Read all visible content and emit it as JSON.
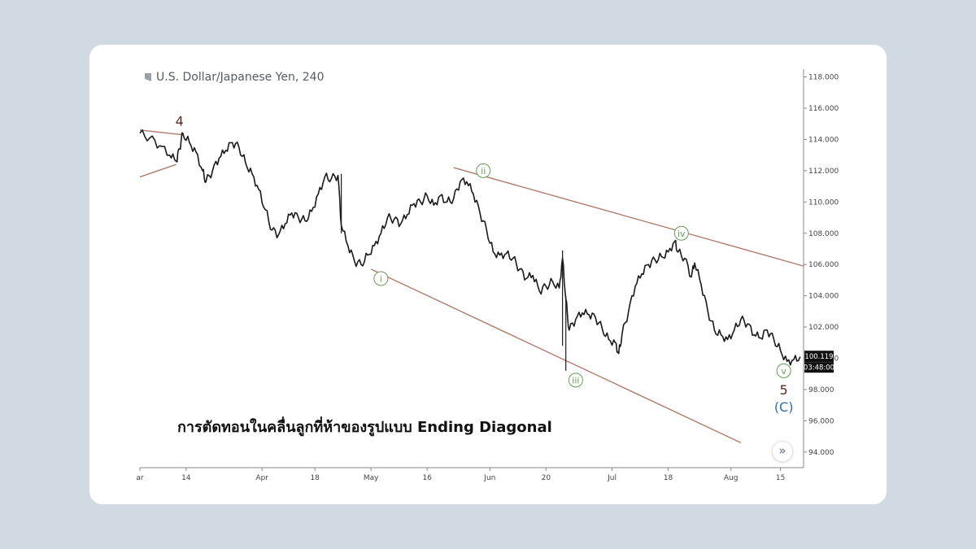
{
  "chart_data": {
    "type": "line",
    "title": "U.S. Dollar/Japanese Yen, 240",
    "caption": "การตัดทอนในคลื่นลูกที่ห้าของรูปแบบ Ending Diagonal",
    "ylim": [
      93,
      118.5
    ],
    "y_ticks": [
      "118.000",
      "116.000",
      "114.000",
      "112.000",
      "110.000",
      "108.000",
      "106.000",
      "104.000",
      "102.000",
      "100.000",
      "98.000",
      "96.000",
      "94.000"
    ],
    "y_tick_values": [
      118,
      116,
      114,
      112,
      110,
      108,
      106,
      104,
      102,
      100,
      98,
      96,
      94
    ],
    "x_ticks": [
      "ar",
      "14",
      "Apr",
      "18",
      "May",
      "16",
      "Jun",
      "20",
      "Jul",
      "18",
      "Aug",
      "15"
    ],
    "x_tick_positions": [
      0,
      14,
      37,
      53,
      70,
      87,
      106,
      123,
      143,
      160,
      179,
      194
    ],
    "xlim": [
      0,
      201
    ],
    "current_price": "100.119",
    "countdown": "03:48:00",
    "price_path": [
      [
        0,
        114.4
      ],
      [
        3,
        114.1
      ],
      [
        6,
        113.6
      ],
      [
        9,
        113.0
      ],
      [
        11,
        112.6
      ],
      [
        12,
        113.4
      ],
      [
        13,
        114.4
      ],
      [
        15,
        113.8
      ],
      [
        17,
        113.2
      ],
      [
        19,
        112.0
      ],
      [
        20,
        111.3
      ],
      [
        22,
        112.0
      ],
      [
        24,
        112.8
      ],
      [
        26,
        113.3
      ],
      [
        28,
        113.8
      ],
      [
        30,
        113.5
      ],
      [
        32,
        112.5
      ],
      [
        34,
        111.8
      ],
      [
        36,
        110.8
      ],
      [
        38,
        109.5
      ],
      [
        40,
        108.2
      ],
      [
        42,
        107.9
      ],
      [
        44,
        108.6
      ],
      [
        46,
        109.3
      ],
      [
        48,
        109.0
      ],
      [
        50,
        108.8
      ],
      [
        52,
        109.4
      ],
      [
        54,
        110.5
      ],
      [
        56,
        111.6
      ],
      [
        58,
        111.5
      ],
      [
        60,
        111.7
      ],
      [
        61,
        108.5
      ],
      [
        63,
        107.2
      ],
      [
        65,
        106.2
      ],
      [
        67,
        106.0
      ],
      [
        69,
        106.6
      ],
      [
        71,
        107.2
      ],
      [
        73,
        108.0
      ],
      [
        75,
        109.0
      ],
      [
        77,
        108.9
      ],
      [
        79,
        108.6
      ],
      [
        81,
        109.2
      ],
      [
        83,
        109.9
      ],
      [
        85,
        110.0
      ],
      [
        87,
        110.4
      ],
      [
        89,
        109.8
      ],
      [
        91,
        110.4
      ],
      [
        93,
        110.0
      ],
      [
        95,
        110.2
      ],
      [
        97,
        111.3
      ],
      [
        99,
        111.3
      ],
      [
        101,
        110.5
      ],
      [
        103,
        109.3
      ],
      [
        105,
        108.2
      ],
      [
        107,
        106.8
      ],
      [
        109,
        106.6
      ],
      [
        111,
        106.7
      ],
      [
        113,
        106.4
      ],
      [
        115,
        105.7
      ],
      [
        117,
        105.1
      ],
      [
        119,
        105.3
      ],
      [
        121,
        104.3
      ],
      [
        123,
        104.6
      ],
      [
        125,
        104.9
      ],
      [
        127,
        104.5
      ],
      [
        128,
        106.4
      ],
      [
        129,
        103.8
      ],
      [
        130,
        101.8
      ],
      [
        132,
        102.5
      ],
      [
        134,
        102.9
      ],
      [
        136,
        102.8
      ],
      [
        138,
        102.6
      ],
      [
        140,
        101.9
      ],
      [
        142,
        101.2
      ],
      [
        144,
        101.0
      ],
      [
        145,
        100.3
      ],
      [
        146,
        101.5
      ],
      [
        148,
        103.0
      ],
      [
        150,
        104.6
      ],
      [
        152,
        105.4
      ],
      [
        154,
        106.0
      ],
      [
        156,
        106.3
      ],
      [
        158,
        106.5
      ],
      [
        160,
        106.8
      ],
      [
        162,
        107.5
      ],
      [
        163,
        106.8
      ],
      [
        165,
        106.4
      ],
      [
        167,
        105.2
      ],
      [
        168,
        106.1
      ],
      [
        170,
        104.7
      ],
      [
        172,
        103.0
      ],
      [
        174,
        101.8
      ],
      [
        176,
        101.5
      ],
      [
        178,
        101.2
      ],
      [
        180,
        101.8
      ],
      [
        182,
        102.5
      ],
      [
        184,
        102.2
      ],
      [
        186,
        101.5
      ],
      [
        188,
        101.3
      ],
      [
        190,
        101.8
      ],
      [
        192,
        101.2
      ],
      [
        194,
        100.5
      ],
      [
        196,
        99.8
      ],
      [
        198,
        99.9
      ],
      [
        200,
        100.1
      ]
    ],
    "wicks": [
      {
        "x": 128,
        "low": 100.8,
        "high": 106.9
      },
      {
        "x": 129,
        "low": 99.2,
        "high": 104.0
      },
      {
        "x": 61,
        "low": 108.0,
        "high": 111.8
      }
    ],
    "trendlines": [
      {
        "x1": 0,
        "y1": 114.6,
        "x2": 13,
        "y2": 114.3
      },
      {
        "x1": 0,
        "y1": 111.6,
        "x2": 11,
        "y2": 112.4
      },
      {
        "x1": 95,
        "y1": 112.2,
        "x2": 201,
        "y2": 105.9
      },
      {
        "x1": 70,
        "y1": 105.7,
        "x2": 182,
        "y2": 94.6
      }
    ],
    "wave_labels": [
      {
        "text": "4",
        "x": 12,
        "y": 115.2,
        "style": "plain",
        "color": "#5a2a22"
      },
      {
        "text": "ii",
        "x": 104,
        "y": 112.0,
        "style": "circle",
        "color": "#6a9a5a"
      },
      {
        "text": "i",
        "x": 73,
        "y": 105.1,
        "style": "circle",
        "color": "#6a9a5a"
      },
      {
        "text": "iii",
        "x": 132,
        "y": 98.6,
        "style": "circle",
        "color": "#6a9a5a"
      },
      {
        "text": "iv",
        "x": 164,
        "y": 108.0,
        "style": "circle",
        "color": "#6a9a5a"
      },
      {
        "text": "v",
        "x": 195,
        "y": 99.2,
        "style": "circle",
        "color": "#6a9a5a"
      },
      {
        "text": "5",
        "x": 195,
        "y": 98.0,
        "style": "plain",
        "color": "#5a2a22"
      },
      {
        "text": "(C)",
        "x": 195,
        "y": 96.9,
        "style": "plain",
        "color": "#2f6ea8"
      }
    ],
    "colors": {
      "price": "#1a1a1a",
      "trendline": "#b07a6c",
      "axis": "#888888",
      "tick_text": "#444444",
      "label_bg": "#111111"
    },
    "grid": false
  }
}
